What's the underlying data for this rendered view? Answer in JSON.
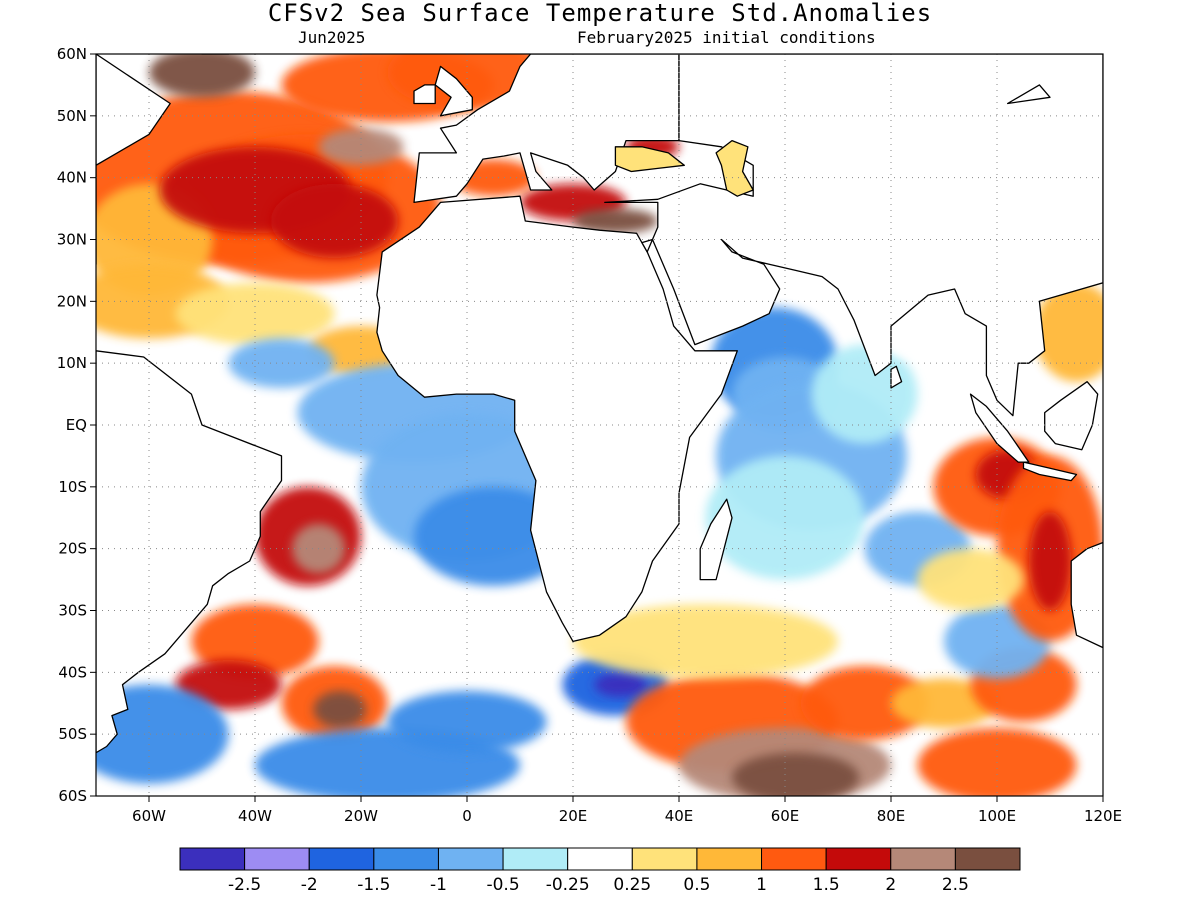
{
  "title": "CFSv2 Sea Surface Temperature Std.Anomalies",
  "subtitle_left": "Jun2025",
  "subtitle_right": "February2025 initial conditions",
  "map": {
    "lon_range": [
      -70,
      120
    ],
    "lat_range": [
      -60,
      60
    ],
    "lon_ticks": [
      {
        "lon": -60,
        "label": "60W"
      },
      {
        "lon": -40,
        "label": "40W"
      },
      {
        "lon": -20,
        "label": "20W"
      },
      {
        "lon": 0,
        "label": "0"
      },
      {
        "lon": 20,
        "label": "20E"
      },
      {
        "lon": 40,
        "label": "40E"
      },
      {
        "lon": 60,
        "label": "60E"
      },
      {
        "lon": 80,
        "label": "80E"
      },
      {
        "lon": 100,
        "label": "100E"
      },
      {
        "lon": 120,
        "label": "120E"
      }
    ],
    "lat_ticks": [
      {
        "lat": 60,
        "label": "60N"
      },
      {
        "lat": 50,
        "label": "50N"
      },
      {
        "lat": 40,
        "label": "40N"
      },
      {
        "lat": 30,
        "label": "30N"
      },
      {
        "lat": 20,
        "label": "20N"
      },
      {
        "lat": 10,
        "label": "10N"
      },
      {
        "lat": 0,
        "label": "EQ"
      },
      {
        "lat": -10,
        "label": "10S"
      },
      {
        "lat": -20,
        "label": "20S"
      },
      {
        "lat": -30,
        "label": "30S"
      },
      {
        "lat": -40,
        "label": "40S"
      },
      {
        "lat": -50,
        "label": "50S"
      },
      {
        "lat": -60,
        "label": "60S"
      }
    ],
    "gridlines": true,
    "region": "Atlantic and Indian Oceans"
  },
  "colorbar": {
    "colors": [
      "#3b2fbd",
      "#9d8cf3",
      "#1f64e0",
      "#3a8ce8",
      "#6fb2f2",
      "#b0ecf7",
      "#ffffff",
      "#ffe27a",
      "#ffb838",
      "#ff5a10",
      "#c40a0a",
      "#b58878",
      "#7a4f3f"
    ],
    "labels": [
      "-2.5",
      "-2",
      "-1.5",
      "-1",
      "-0.5",
      "-0.25",
      "0.25",
      "0.5",
      "1",
      "1.5",
      "2",
      "2.5"
    ]
  }
}
